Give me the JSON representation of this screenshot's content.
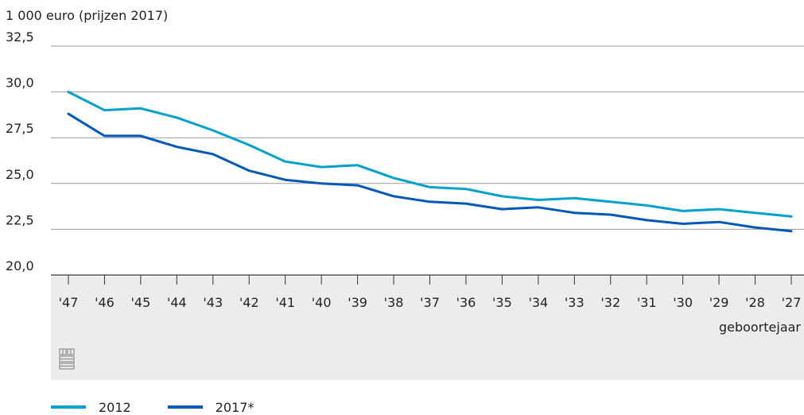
{
  "chart_data": {
    "type": "line",
    "unit_label": "1 000 euro (prijzen 2017)",
    "xlabel": "geboortejaar",
    "ylabel": "",
    "ylim": [
      20.0,
      32.5
    ],
    "yticks": [
      "20,0",
      "22,5",
      "25,0",
      "27,5",
      "30,0",
      "32,5"
    ],
    "ytick_values": [
      20.0,
      22.5,
      25.0,
      27.5,
      30.0,
      32.5
    ],
    "categories": [
      "'47",
      "'46",
      "'45",
      "'44",
      "'43",
      "'42",
      "'41",
      "'40",
      "'39",
      "'38",
      "'37",
      "'36",
      "'35",
      "'34",
      "'33",
      "'32",
      "'31",
      "'30",
      "'29",
      "'28",
      "'27"
    ],
    "series": [
      {
        "name": "2012",
        "color": "#00a1cd",
        "values": [
          30.0,
          29.0,
          29.1,
          28.6,
          27.9,
          27.1,
          26.2,
          25.9,
          26.0,
          25.3,
          24.8,
          24.7,
          24.3,
          24.1,
          24.2,
          24.0,
          23.8,
          23.5,
          23.6,
          23.4,
          23.2
        ]
      },
      {
        "name": "2017*",
        "color": "#0058b8",
        "values": [
          28.8,
          27.6,
          27.6,
          27.0,
          26.6,
          25.7,
          25.2,
          25.0,
          24.9,
          24.3,
          24.0,
          23.9,
          23.6,
          23.7,
          23.4,
          23.3,
          23.0,
          22.8,
          22.9,
          22.6,
          22.4
        ]
      }
    ],
    "grid": true,
    "legend_position": "bottom-left",
    "logo_icon": "cbs-logo-icon"
  }
}
